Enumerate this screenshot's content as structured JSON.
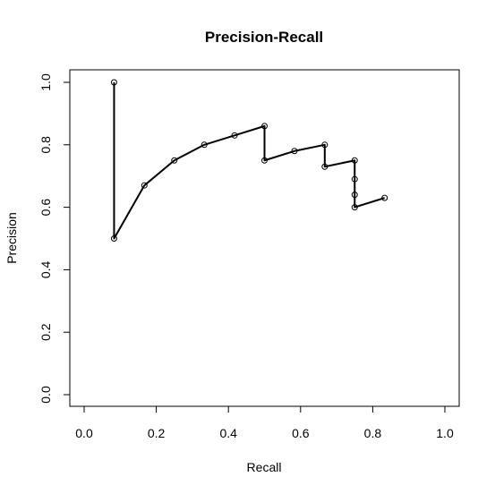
{
  "chart_data": {
    "type": "line",
    "title": "Precision-Recall",
    "xlabel": "Recall",
    "ylabel": "Precision",
    "xlim": [
      0.0,
      1.0
    ],
    "ylim": [
      0.0,
      1.0
    ],
    "x_ticks": [
      "0.0",
      "0.2",
      "0.4",
      "0.6",
      "0.8",
      "1.0"
    ],
    "y_ticks": [
      "0.0",
      "0.2",
      "0.4",
      "0.6",
      "0.8",
      "1.0"
    ],
    "grid": false,
    "legend": "none",
    "series": [
      {
        "color": "#000000",
        "markers": "open-circle",
        "x": [
          0.083,
          0.083,
          0.167,
          0.25,
          0.333,
          0.417,
          0.5,
          0.5,
          0.583,
          0.667,
          0.667,
          0.75,
          0.75,
          0.75,
          0.75,
          0.833
        ],
        "y": [
          1.0,
          0.5,
          0.67,
          0.75,
          0.8,
          0.83,
          0.86,
          0.75,
          0.78,
          0.8,
          0.73,
          0.75,
          0.69,
          0.64,
          0.6,
          0.63
        ]
      }
    ]
  }
}
